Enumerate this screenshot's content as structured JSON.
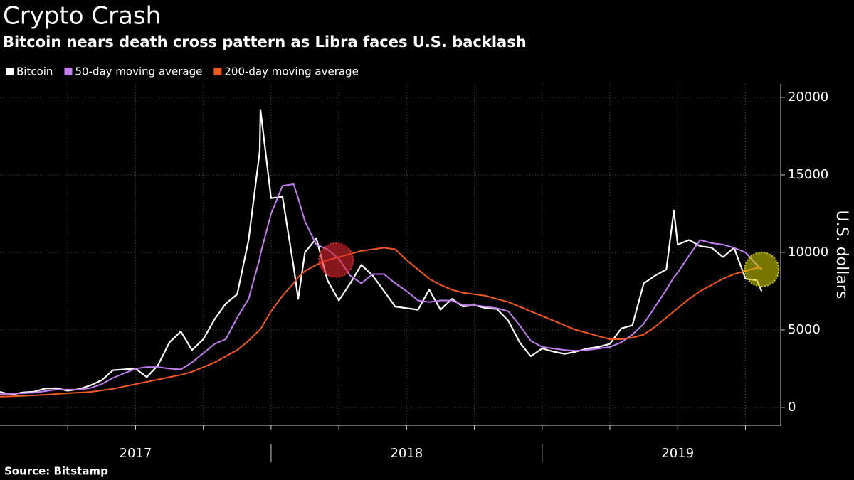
{
  "chart_data": {
    "type": "line",
    "title": "Crypto Crash",
    "subtitle": "Bitcoin nears death cross pattern as Libra faces U.S. backlash",
    "y_label": "U.S. dollars",
    "source": "Source: Bitstamp",
    "x": [
      2017.0,
      2017.042,
      2017.083,
      2017.125,
      2017.167,
      2017.208,
      2017.25,
      2017.292,
      2017.333,
      2017.375,
      2017.417,
      2017.458,
      2017.5,
      2017.542,
      2017.583,
      2017.625,
      2017.667,
      2017.708,
      2017.75,
      2017.792,
      2017.833,
      2017.875,
      2017.917,
      2017.958,
      2017.961,
      2018.0,
      2018.042,
      2018.083,
      2018.1,
      2018.125,
      2018.167,
      2018.208,
      2018.25,
      2018.292,
      2018.333,
      2018.375,
      2018.417,
      2018.458,
      2018.5,
      2018.542,
      2018.583,
      2018.625,
      2018.667,
      2018.708,
      2018.75,
      2018.792,
      2018.833,
      2018.875,
      2018.917,
      2018.958,
      2019.0,
      2019.042,
      2019.083,
      2019.125,
      2019.167,
      2019.208,
      2019.25,
      2019.292,
      2019.333,
      2019.375,
      2019.417,
      2019.458,
      2019.486,
      2019.5,
      2019.542,
      2019.583,
      2019.625,
      2019.667,
      2019.708,
      2019.75,
      2019.792,
      2019.81
    ],
    "series": [
      {
        "name": "Bitcoin",
        "color": "#ffffff",
        "values": [
          1000,
          820,
          970,
          1010,
          1220,
          1240,
          1080,
          1180,
          1420,
          1750,
          2400,
          2450,
          2500,
          1950,
          2730,
          4200,
          4900,
          3700,
          4400,
          5700,
          6700,
          7300,
          10800,
          16500,
          19200,
          13500,
          13600,
          9100,
          7000,
          10000,
          10900,
          8200,
          6900,
          8000,
          9200,
          8500,
          7500,
          6500,
          6400,
          6300,
          7600,
          6300,
          7000,
          6500,
          6600,
          6400,
          6350,
          5600,
          4200,
          3300,
          3800,
          3600,
          3450,
          3600,
          3800,
          3900,
          4100,
          5100,
          5300,
          8000,
          8500,
          8900,
          12700,
          10500,
          10800,
          10400,
          10300,
          9700,
          10300,
          8300,
          8200,
          7500
        ]
      },
      {
        "name": "50-day moving average",
        "color": "#c27df0",
        "values": [
          850,
          880,
          920,
          950,
          1050,
          1150,
          1150,
          1150,
          1250,
          1500,
          1900,
          2200,
          2500,
          2600,
          2600,
          2500,
          2450,
          2900,
          3500,
          4100,
          4400,
          5800,
          7000,
          9600,
          9900,
          12500,
          14300,
          14400,
          13500,
          12000,
          10500,
          10200,
          9600,
          8500,
          8000,
          8600,
          8600,
          8000,
          7500,
          6900,
          6800,
          6900,
          6900,
          6600,
          6600,
          6500,
          6400,
          6200,
          5300,
          4300,
          3900,
          3800,
          3700,
          3650,
          3700,
          3800,
          3900,
          4200,
          4700,
          5400,
          6500,
          7600,
          8400,
          8700,
          9800,
          10800,
          10600,
          10500,
          10300,
          10000,
          9200,
          8900
        ]
      },
      {
        "name": "200-day moving average",
        "color": "#f05a1e",
        "values": [
          700,
          720,
          750,
          780,
          820,
          870,
          920,
          960,
          1000,
          1100,
          1200,
          1350,
          1500,
          1650,
          1800,
          1950,
          2100,
          2300,
          2600,
          2900,
          3300,
          3700,
          4300,
          5000,
          5050,
          6200,
          7200,
          8000,
          8400,
          8800,
          9200,
          9500,
          9700,
          9900,
          10100,
          10200,
          10300,
          10200,
          9500,
          8900,
          8300,
          7900,
          7600,
          7400,
          7300,
          7200,
          7000,
          6800,
          6500,
          6200,
          5900,
          5600,
          5300,
          5000,
          4800,
          4600,
          4400,
          4400,
          4500,
          4700,
          5200,
          5800,
          6200,
          6400,
          7000,
          7500,
          7900,
          8300,
          8600,
          8800,
          9000,
          9000
        ]
      }
    ],
    "highlights": [
      {
        "x": 2018.24,
        "y": 9500,
        "color": "#e0262f"
      },
      {
        "x": 2019.81,
        "y": 8900,
        "color": "#c8c800"
      }
    ],
    "xlim": [
      2017.0,
      2019.88
    ],
    "xticks": [
      {
        "value": 2017.5,
        "label": "2017"
      },
      {
        "value": 2018.5,
        "label": "2018"
      },
      {
        "value": 2019.5,
        "label": "2019"
      }
    ],
    "xgrid": [
      2017.25,
      2017.5,
      2017.75,
      2018,
      2018.25,
      2018.5,
      2018.75,
      2019,
      2019.25,
      2019.5,
      2019.75
    ],
    "ylim": [
      -1150,
      20870
    ],
    "yticks": [
      0,
      5000,
      10000,
      15000,
      20000
    ],
    "grid": true
  }
}
